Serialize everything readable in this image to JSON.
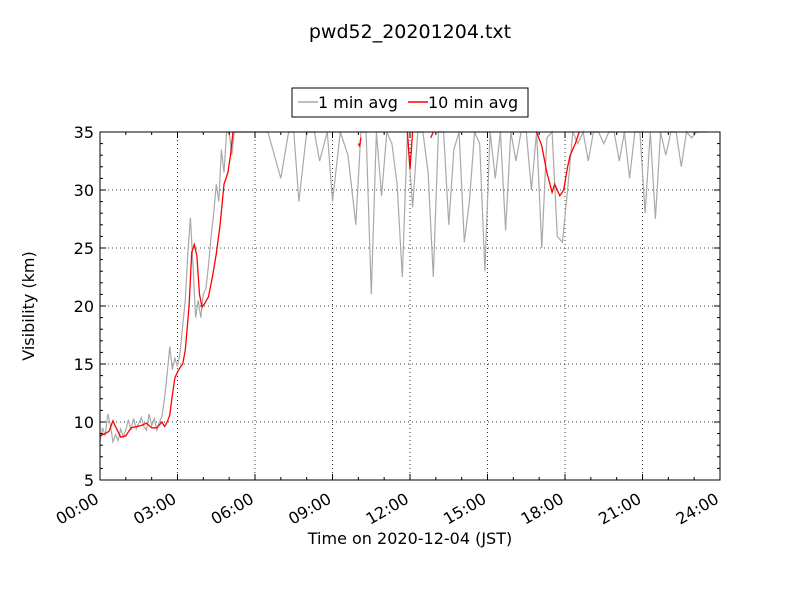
{
  "chart_data": {
    "type": "line",
    "title": "pwd52_20201204.txt",
    "xlabel": "Time on 2020-12-04 (JST)",
    "ylabel": "Visibility (km)",
    "x_ticks": [
      "00:00",
      "03:00",
      "06:00",
      "09:00",
      "12:00",
      "15:00",
      "18:00",
      "21:00",
      "24:00"
    ],
    "y_ticks": [
      "5",
      "10",
      "15",
      "20",
      "25",
      "30",
      "35"
    ],
    "xlim_hours": [
      0,
      24
    ],
    "ylim": [
      5,
      35
    ],
    "grid": true,
    "grid_style": "dotted",
    "legend_position": "top-center",
    "series": [
      {
        "name": "1 min avg",
        "color": "#a9a9a9",
        "x_hours": [
          0.0,
          0.1,
          0.2,
          0.3,
          0.4,
          0.5,
          0.6,
          0.7,
          0.8,
          0.9,
          1.0,
          1.1,
          1.2,
          1.3,
          1.4,
          1.5,
          1.6,
          1.7,
          1.8,
          1.9,
          2.0,
          2.1,
          2.2,
          2.3,
          2.4,
          2.5,
          2.6,
          2.7,
          2.8,
          2.9,
          3.0,
          3.1,
          3.2,
          3.3,
          3.4,
          3.5,
          3.6,
          3.7,
          3.8,
          3.9,
          4.0,
          4.1,
          4.2,
          4.3,
          4.4,
          4.5,
          4.6,
          4.7,
          4.8,
          4.9,
          5.0,
          5.1,
          5.2,
          5.4,
          5.6,
          5.8,
          6.0,
          6.5,
          7.0,
          7.3,
          7.5,
          7.7,
          8.0,
          8.3,
          8.5,
          8.8,
          9.0,
          9.3,
          9.6,
          9.9,
          10.1,
          10.3,
          10.5,
          10.7,
          10.9,
          11.1,
          11.3,
          11.5,
          11.7,
          11.9,
          12.1,
          12.3,
          12.5,
          12.7,
          12.9,
          13.1,
          13.3,
          13.5,
          13.7,
          13.9,
          14.1,
          14.3,
          14.5,
          14.7,
          14.9,
          15.1,
          15.3,
          15.5,
          15.7,
          15.9,
          16.1,
          16.3,
          16.5,
          16.7,
          16.9,
          17.1,
          17.3,
          17.5,
          17.7,
          17.9,
          18.1,
          18.3,
          18.5,
          18.7,
          18.9,
          19.1,
          19.3,
          19.5,
          19.7,
          19.9,
          20.1,
          20.3,
          20.5,
          20.7,
          20.9,
          21.1,
          21.3,
          21.5,
          21.7,
          21.9,
          22.1,
          22.3,
          22.5,
          22.7,
          22.9,
          23.1,
          23.3,
          23.5
        ],
        "y_km": [
          8.3,
          9.5,
          8.8,
          10.7,
          9.8,
          8.3,
          8.9,
          8.4,
          9.4,
          8.7,
          9.3,
          10.2,
          9.3,
          10.3,
          9.4,
          9.9,
          10.4,
          9.6,
          9.3,
          10.7,
          9.7,
          10.3,
          9.3,
          10.0,
          10.5,
          12.1,
          14.2,
          16.5,
          14.5,
          15.5,
          14.8,
          16.0,
          18.3,
          20.5,
          24.5,
          27.6,
          23.5,
          19.0,
          20.5,
          19.0,
          21.0,
          21.5,
          23.5,
          26.0,
          28.0,
          30.5,
          29.0,
          33.5,
          31.5,
          35.0,
          35.0,
          33.0,
          35.0,
          35.0,
          35.0,
          35.0,
          35.0,
          35.0,
          31.0,
          35.0,
          35.0,
          29.0,
          35.0,
          35.0,
          32.5,
          35.0,
          29.0,
          35.0,
          33.0,
          27.0,
          35.0,
          35.0,
          21.0,
          35.0,
          29.5,
          35.0,
          34.0,
          30.5,
          22.5,
          35.0,
          28.5,
          35.0,
          35.0,
          31.5,
          22.5,
          35.0,
          35.0,
          27.0,
          33.5,
          35.0,
          25.5,
          29.0,
          35.0,
          34.0,
          23.0,
          35.0,
          31.0,
          35.0,
          26.5,
          35.0,
          32.5,
          35.0,
          35.0,
          30.0,
          35.0,
          25.0,
          34.5,
          35.0,
          26.0,
          25.5,
          30.0,
          35.0,
          34.0,
          35.0,
          32.5,
          35.0,
          35.0,
          34.0,
          35.0,
          35.0,
          32.5,
          35.0,
          31.0,
          35.0,
          35.0,
          28.0,
          35.0,
          27.5,
          35.0,
          33.0,
          35.0,
          35.0,
          32.0,
          35.0,
          34.5,
          35.0,
          35.0,
          35.0
        ]
      },
      {
        "name": "10 min avg",
        "color": "#ff0000",
        "x_hours": [
          0.0,
          0.2,
          0.35,
          0.5,
          0.6,
          0.8,
          1.0,
          1.2,
          1.4,
          1.6,
          1.8,
          2.0,
          2.2,
          2.4,
          2.5,
          2.6,
          2.7,
          2.8,
          2.9,
          3.0,
          3.1,
          3.2,
          3.3,
          3.45,
          3.55,
          3.65,
          3.75,
          3.85,
          3.95,
          4.05,
          4.2,
          4.35,
          4.5,
          4.65,
          4.8,
          4.95,
          5.05,
          5.15
        ],
        "y_km": [
          8.8,
          9.0,
          9.2,
          10.1,
          9.6,
          8.7,
          8.8,
          9.5,
          9.6,
          9.7,
          9.9,
          9.5,
          9.5,
          10.0,
          9.6,
          10.0,
          10.6,
          12.3,
          13.8,
          14.3,
          14.7,
          15.0,
          16.2,
          20.0,
          24.6,
          25.3,
          24.3,
          21.0,
          19.9,
          20.2,
          20.8,
          22.5,
          24.5,
          27.0,
          30.5,
          31.5,
          33.0,
          35.0
        ]
      }
    ],
    "extra_red_bursts": [
      {
        "x_hours": [
          10.0,
          10.05,
          10.1
        ],
        "y_km": [
          34.0,
          33.8,
          34.5
        ]
      },
      {
        "x_hours": [
          11.9,
          12.0,
          12.1
        ],
        "y_km": [
          35.0,
          31.8,
          35.0
        ]
      },
      {
        "x_hours": [
          12.8,
          12.9
        ],
        "y_km": [
          34.5,
          35.0
        ]
      },
      {
        "x_hours": [
          16.9,
          17.1,
          17.3,
          17.5,
          17.6,
          17.8,
          17.95,
          18.1,
          18.2,
          18.4,
          18.55
        ],
        "y_km": [
          35.0,
          33.8,
          31.5,
          29.8,
          30.5,
          29.5,
          30.0,
          32.0,
          33.0,
          34.0,
          35.0
        ]
      }
    ]
  }
}
